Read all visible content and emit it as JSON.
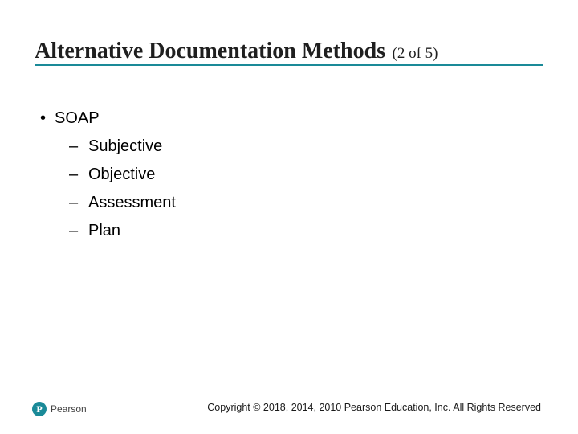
{
  "colors": {
    "title_underline": "#1a8a98",
    "title_text": "#1f1f1f",
    "body_text": "#000000",
    "logo_bg": "#1a8a98",
    "copyright_text": "#1a1a1a"
  },
  "title": {
    "main": "Alternative Documentation Methods",
    "sub": "(2 of 5)",
    "main_fontsize": 28,
    "sub_fontsize": 19
  },
  "content": {
    "fontsize": 20,
    "l1_bullet": "•",
    "l2_dash": "–",
    "items": [
      {
        "text": "SOAP",
        "children": [
          "Subjective",
          "Objective",
          "Assessment",
          "Plan"
        ]
      }
    ]
  },
  "logo": {
    "letter": "P",
    "text": "Pearson"
  },
  "copyright": "Copyright © 2018, 2014, 2010 Pearson Education, Inc. All Rights Reserved"
}
